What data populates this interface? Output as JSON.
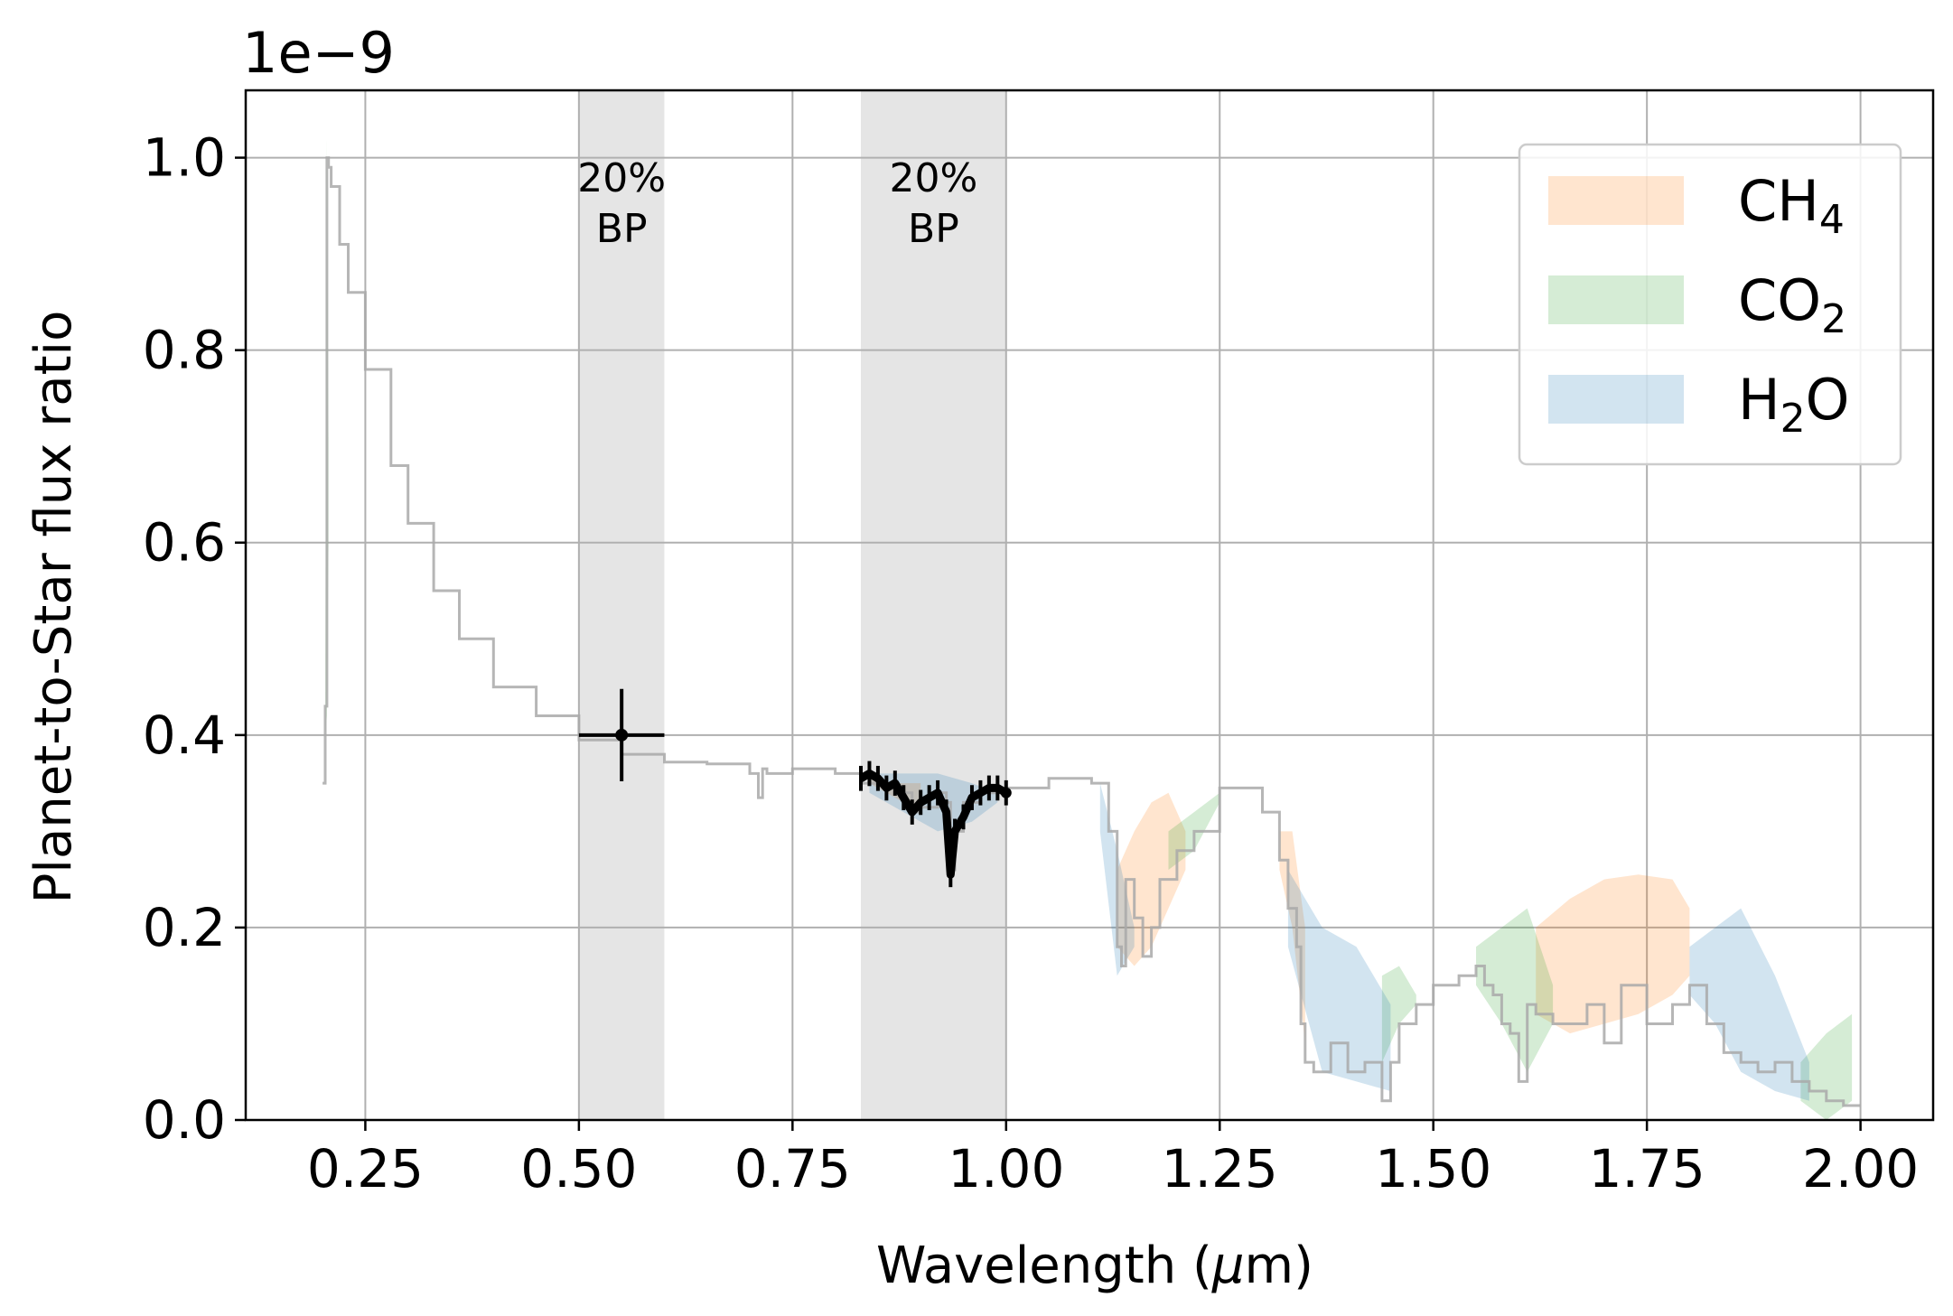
{
  "chart_data": {
    "type": "line",
    "xlabel": "Wavelength (μm)",
    "xlabel_parts": {
      "pre": "Wavelength (",
      "mu": "μ",
      "post": "m)"
    },
    "ylabel": "Planet-to-Star flux ratio",
    "y_offset_text": "1e−9",
    "y_scale": 1e-09,
    "xlim": [
      0.11,
      2.085
    ],
    "ylim": [
      0.0,
      1.07
    ],
    "x_ticks": [
      0.25,
      0.5,
      0.75,
      1.0,
      1.25,
      1.5,
      1.75,
      2.0
    ],
    "x_tick_labels": [
      "0.25",
      "0.50",
      "0.75",
      "1.00",
      "1.25",
      "1.50",
      "1.75",
      "2.00"
    ],
    "y_ticks": [
      0.0,
      0.2,
      0.4,
      0.6,
      0.8,
      1.0
    ],
    "y_tick_labels": [
      "0.0",
      "0.2",
      "0.4",
      "0.6",
      "0.8",
      "1.0"
    ],
    "grid": true,
    "legend_position": "top-right",
    "colors": {
      "CH4": "#ff7f0e",
      "CO2": "#2ca02c",
      "H2O": "#1f77b4",
      "model": "#a9a9a9",
      "bandpass": "#d3d3d3",
      "data": "#000000"
    },
    "legend": [
      {
        "key": "CH4",
        "label": "CH",
        "sub": "4",
        "after": ""
      },
      {
        "key": "CO2",
        "label": "CO",
        "sub": "2",
        "after": ""
      },
      {
        "key": "H2O",
        "label": "H",
        "sub": "2",
        "after": "O"
      }
    ],
    "bandpasses": [
      {
        "x0": 0.5,
        "x1": 0.6,
        "label_line1": "20%",
        "label_line2": "BP"
      },
      {
        "x0": 0.83,
        "x1": 1.0,
        "label_line1": "20%",
        "label_line2": "BP"
      }
    ],
    "model_spectrum": {
      "x": [
        0.2,
        0.203,
        0.205,
        0.207,
        0.21,
        0.22,
        0.23,
        0.25,
        0.28,
        0.3,
        0.33,
        0.36,
        0.4,
        0.45,
        0.5,
        0.55,
        0.6,
        0.65,
        0.7,
        0.71,
        0.715,
        0.72,
        0.75,
        0.8,
        0.83,
        0.85,
        0.87,
        0.88,
        0.89,
        0.9,
        0.92,
        0.93,
        0.935,
        0.94,
        0.95,
        0.97,
        1.0,
        1.05,
        1.1,
        1.12,
        1.13,
        1.135,
        1.14,
        1.15,
        1.16,
        1.17,
        1.18,
        1.2,
        1.22,
        1.25,
        1.28,
        1.3,
        1.32,
        1.33,
        1.34,
        1.345,
        1.35,
        1.36,
        1.38,
        1.4,
        1.42,
        1.44,
        1.45,
        1.46,
        1.48,
        1.5,
        1.53,
        1.55,
        1.56,
        1.57,
        1.58,
        1.59,
        1.6,
        1.61,
        1.62,
        1.64,
        1.66,
        1.68,
        1.7,
        1.72,
        1.75,
        1.78,
        1.8,
        1.82,
        1.84,
        1.86,
        1.88,
        1.9,
        1.92,
        1.94,
        1.96,
        1.98,
        2.0
      ],
      "y": [
        0.35,
        0.43,
        1.0,
        0.99,
        0.97,
        0.91,
        0.86,
        0.78,
        0.68,
        0.62,
        0.55,
        0.5,
        0.45,
        0.42,
        0.395,
        0.38,
        0.372,
        0.37,
        0.36,
        0.335,
        0.365,
        0.36,
        0.365,
        0.36,
        0.35,
        0.35,
        0.345,
        0.34,
        0.32,
        0.325,
        0.34,
        0.33,
        0.26,
        0.3,
        0.33,
        0.34,
        0.345,
        0.355,
        0.35,
        0.3,
        0.18,
        0.16,
        0.25,
        0.21,
        0.17,
        0.2,
        0.25,
        0.28,
        0.3,
        0.345,
        0.345,
        0.32,
        0.27,
        0.22,
        0.18,
        0.1,
        0.06,
        0.05,
        0.08,
        0.05,
        0.06,
        0.02,
        0.06,
        0.1,
        0.12,
        0.14,
        0.15,
        0.16,
        0.14,
        0.13,
        0.1,
        0.09,
        0.04,
        0.12,
        0.11,
        0.1,
        0.1,
        0.12,
        0.08,
        0.14,
        0.1,
        0.12,
        0.14,
        0.1,
        0.07,
        0.06,
        0.05,
        0.06,
        0.04,
        0.03,
        0.02,
        0.015,
        0.015
      ]
    },
    "ch4_bands": [
      {
        "x": [
          1.13,
          1.15,
          1.17,
          1.19,
          1.21
        ],
        "upper": [
          0.26,
          0.3,
          0.33,
          0.34,
          0.3
        ],
        "lower": [
          0.18,
          0.16,
          0.18,
          0.22,
          0.26
        ]
      },
      {
        "x": [
          1.32,
          1.335,
          1.35
        ],
        "upper": [
          0.3,
          0.3,
          0.2
        ],
        "lower": [
          0.26,
          0.2,
          0.08
        ]
      },
      {
        "x": [
          1.62,
          1.66,
          1.7,
          1.74,
          1.78,
          1.8
        ],
        "upper": [
          0.2,
          0.23,
          0.25,
          0.255,
          0.25,
          0.22
        ],
        "lower": [
          0.11,
          0.09,
          0.1,
          0.11,
          0.13,
          0.15
        ]
      },
      {
        "x": [
          0.84,
          0.86,
          0.88,
          0.9
        ],
        "upper": [
          0.36,
          0.35,
          0.35,
          0.35
        ],
        "lower": [
          0.35,
          0.34,
          0.33,
          0.32
        ]
      }
    ],
    "co2_bands": [
      {
        "x": [
          0.203,
          0.205,
          0.207
        ],
        "upper": [
          0.42,
          1.02,
          0.7
        ],
        "lower": [
          0.4,
          0.42,
          0.6
        ]
      },
      {
        "x": [
          1.19,
          1.22,
          1.25
        ],
        "upper": [
          0.3,
          0.32,
          0.34
        ],
        "lower": [
          0.26,
          0.28,
          0.33
        ]
      },
      {
        "x": [
          1.44,
          1.46,
          1.48
        ],
        "upper": [
          0.15,
          0.16,
          0.13
        ],
        "lower": [
          0.06,
          0.1,
          0.12
        ]
      },
      {
        "x": [
          1.55,
          1.58,
          1.61,
          1.64
        ],
        "upper": [
          0.18,
          0.2,
          0.22,
          0.14
        ],
        "lower": [
          0.14,
          0.1,
          0.05,
          0.1
        ]
      },
      {
        "x": [
          1.93,
          1.96,
          1.99
        ],
        "upper": [
          0.06,
          0.09,
          0.11
        ],
        "lower": [
          0.02,
          0.0,
          0.02
        ]
      }
    ],
    "h2o_bands": [
      {
        "x": [
          0.84,
          0.88,
          0.92,
          0.96,
          0.99
        ],
        "upper": [
          0.36,
          0.36,
          0.36,
          0.35,
          0.34
        ],
        "lower": [
          0.34,
          0.32,
          0.3,
          0.31,
          0.33
        ]
      },
      {
        "x": [
          1.11,
          1.13,
          1.15
        ],
        "upper": [
          0.35,
          0.28,
          0.2
        ],
        "lower": [
          0.3,
          0.15,
          0.18
        ]
      },
      {
        "x": [
          1.33,
          1.37,
          1.41,
          1.45
        ],
        "upper": [
          0.26,
          0.2,
          0.18,
          0.12
        ],
        "lower": [
          0.18,
          0.05,
          0.04,
          0.03
        ]
      },
      {
        "x": [
          1.8,
          1.83,
          1.86,
          1.9,
          1.94
        ],
        "upper": [
          0.18,
          0.2,
          0.22,
          0.15,
          0.06
        ],
        "lower": [
          0.13,
          0.1,
          0.05,
          0.03,
          0.02
        ]
      }
    ],
    "points": [
      {
        "x": 0.55,
        "y": 0.4,
        "xerr": 0.05,
        "yerr": 0.048
      }
    ],
    "spectrum_data": {
      "x": [
        0.83,
        0.84,
        0.85,
        0.86,
        0.87,
        0.88,
        0.89,
        0.9,
        0.91,
        0.92,
        0.93,
        0.935,
        0.94,
        0.95,
        0.96,
        0.97,
        0.98,
        0.99,
        1.0
      ],
      "y": [
        0.355,
        0.36,
        0.355,
        0.345,
        0.35,
        0.335,
        0.32,
        0.33,
        0.335,
        0.34,
        0.32,
        0.255,
        0.3,
        0.315,
        0.335,
        0.34,
        0.345,
        0.345,
        0.34
      ],
      "yerr": 0.013
    }
  }
}
